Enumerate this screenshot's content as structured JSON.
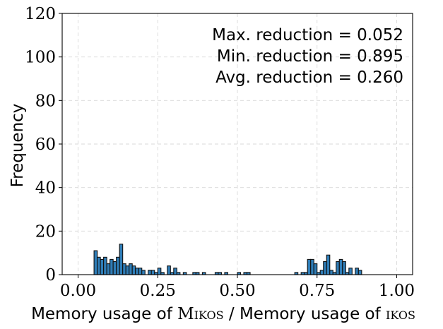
{
  "chart_data": {
    "type": "bar",
    "xlabel_parts": [
      "Memory usage of ",
      "Mikos",
      " / Memory usage of ",
      "ikos"
    ],
    "ylabel": "Frequency",
    "xlim": [
      -0.05,
      1.05
    ],
    "ylim": [
      0,
      120
    ],
    "xticks": [
      0.0,
      0.25,
      0.5,
      0.75,
      1.0
    ],
    "xtick_labels": [
      "0.00",
      "0.25",
      "0.50",
      "0.75",
      "1.00"
    ],
    "yticks": [
      0,
      20,
      40,
      60,
      80,
      100,
      120
    ],
    "ytick_labels": [
      "0",
      "20",
      "40",
      "60",
      "80",
      "100",
      "120"
    ],
    "grid": true,
    "bin_width": 0.01,
    "bins": [
      {
        "x": 0.05,
        "y": 11
      },
      {
        "x": 0.06,
        "y": 8
      },
      {
        "x": 0.07,
        "y": 7
      },
      {
        "x": 0.08,
        "y": 8
      },
      {
        "x": 0.09,
        "y": 5
      },
      {
        "x": 0.1,
        "y": 7
      },
      {
        "x": 0.11,
        "y": 6
      },
      {
        "x": 0.12,
        "y": 8
      },
      {
        "x": 0.13,
        "y": 14
      },
      {
        "x": 0.14,
        "y": 5
      },
      {
        "x": 0.15,
        "y": 4
      },
      {
        "x": 0.16,
        "y": 5
      },
      {
        "x": 0.17,
        "y": 4
      },
      {
        "x": 0.18,
        "y": 3
      },
      {
        "x": 0.19,
        "y": 3
      },
      {
        "x": 0.2,
        "y": 2
      },
      {
        "x": 0.22,
        "y": 2
      },
      {
        "x": 0.23,
        "y": 2
      },
      {
        "x": 0.24,
        "y": 1
      },
      {
        "x": 0.25,
        "y": 3
      },
      {
        "x": 0.26,
        "y": 1
      },
      {
        "x": 0.28,
        "y": 4
      },
      {
        "x": 0.29,
        "y": 1
      },
      {
        "x": 0.3,
        "y": 3
      },
      {
        "x": 0.31,
        "y": 1
      },
      {
        "x": 0.33,
        "y": 1
      },
      {
        "x": 0.36,
        "y": 1
      },
      {
        "x": 0.37,
        "y": 1
      },
      {
        "x": 0.39,
        "y": 1
      },
      {
        "x": 0.43,
        "y": 1
      },
      {
        "x": 0.44,
        "y": 1
      },
      {
        "x": 0.46,
        "y": 1
      },
      {
        "x": 0.5,
        "y": 1
      },
      {
        "x": 0.52,
        "y": 1
      },
      {
        "x": 0.53,
        "y": 1
      },
      {
        "x": 0.68,
        "y": 1
      },
      {
        "x": 0.7,
        "y": 1
      },
      {
        "x": 0.71,
        "y": 1
      },
      {
        "x": 0.72,
        "y": 7
      },
      {
        "x": 0.73,
        "y": 7
      },
      {
        "x": 0.74,
        "y": 5
      },
      {
        "x": 0.75,
        "y": 1
      },
      {
        "x": 0.76,
        "y": 2
      },
      {
        "x": 0.77,
        "y": 6
      },
      {
        "x": 0.78,
        "y": 9
      },
      {
        "x": 0.79,
        "y": 2
      },
      {
        "x": 0.8,
        "y": 1
      },
      {
        "x": 0.81,
        "y": 6
      },
      {
        "x": 0.82,
        "y": 7
      },
      {
        "x": 0.83,
        "y": 6
      },
      {
        "x": 0.84,
        "y": 1
      },
      {
        "x": 0.85,
        "y": 3
      },
      {
        "x": 0.87,
        "y": 3
      },
      {
        "x": 0.88,
        "y": 2
      }
    ],
    "annotations": [
      "Max. reduction = 0.052",
      "Min. reduction = 0.895",
      "Avg. reduction = 0.260"
    ],
    "colors": {
      "bar": "#2f7db7",
      "edge": "#111111"
    }
  }
}
